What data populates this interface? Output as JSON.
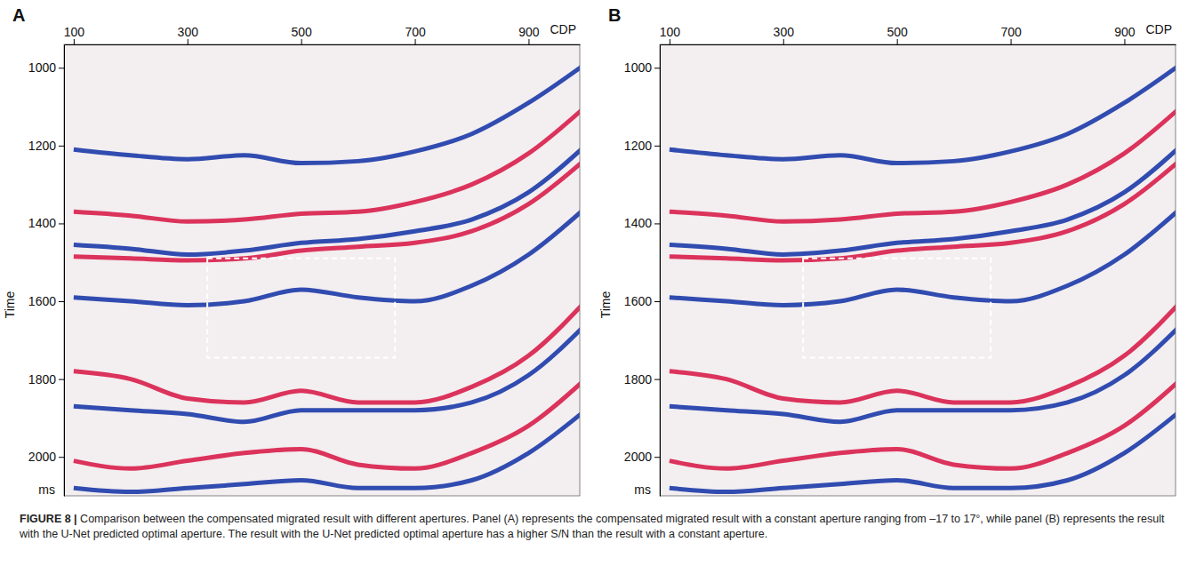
{
  "chart_data": [
    {
      "type": "line",
      "panel": "A",
      "x_label": "CDP",
      "y_label": "Time",
      "y_unit": "ms",
      "xlim": [
        83,
        990
      ],
      "ylim": [
        940,
        2100
      ],
      "xticks": [
        100,
        300,
        500,
        700,
        900
      ],
      "yticks": [
        1000,
        1200,
        1400,
        1600,
        1800,
        2000
      ],
      "x": [
        100,
        200,
        300,
        400,
        500,
        600,
        700,
        800,
        900,
        1000
      ],
      "series": [
        {
          "color": "#1c3aa9",
          "values": [
            1210,
            1225,
            1235,
            1225,
            1245,
            1240,
            1215,
            1170,
            1090,
            990
          ]
        },
        {
          "color": "#d81e4a",
          "values": [
            1370,
            1380,
            1395,
            1390,
            1375,
            1370,
            1345,
            1300,
            1220,
            1100
          ]
        },
        {
          "color": "#1c3aa9",
          "values": [
            1455,
            1465,
            1480,
            1470,
            1450,
            1440,
            1420,
            1390,
            1320,
            1200
          ]
        },
        {
          "color": "#d81e4a",
          "values": [
            1485,
            1490,
            1495,
            1490,
            1470,
            1460,
            1450,
            1420,
            1350,
            1235
          ]
        },
        {
          "color": "#1c3aa9",
          "values": [
            1590,
            1600,
            1610,
            1600,
            1570,
            1590,
            1600,
            1560,
            1480,
            1360
          ]
        },
        {
          "color": "#d81e4a",
          "values": [
            1780,
            1800,
            1850,
            1860,
            1830,
            1860,
            1860,
            1820,
            1740,
            1600
          ]
        },
        {
          "color": "#1c3aa9",
          "values": [
            1870,
            1880,
            1890,
            1910,
            1880,
            1880,
            1880,
            1860,
            1790,
            1660
          ]
        },
        {
          "color": "#d81e4a",
          "values": [
            2010,
            2030,
            2010,
            1990,
            1980,
            2020,
            2030,
            1990,
            1920,
            1800
          ]
        },
        {
          "color": "#1c3aa9",
          "values": [
            2080,
            2090,
            2080,
            2070,
            2060,
            2080,
            2080,
            2060,
            1990,
            1880
          ]
        }
      ],
      "box": {
        "x": [
          335,
          665
        ],
        "y": [
          1490,
          1745
        ]
      }
    },
    {
      "type": "line",
      "panel": "B",
      "x_label": "CDP",
      "y_label": "Time",
      "y_unit": "ms",
      "xlim": [
        83,
        990
      ],
      "ylim": [
        940,
        2100
      ],
      "xticks": [
        100,
        300,
        500,
        700,
        900
      ],
      "yticks": [
        1000,
        1200,
        1400,
        1600,
        1800,
        2000
      ],
      "x": [
        100,
        200,
        300,
        400,
        500,
        600,
        700,
        800,
        900,
        1000
      ],
      "series": [
        {
          "color": "#1c3aa9",
          "values": [
            1210,
            1225,
            1235,
            1225,
            1245,
            1240,
            1215,
            1170,
            1090,
            990
          ]
        },
        {
          "color": "#d81e4a",
          "values": [
            1370,
            1380,
            1395,
            1390,
            1375,
            1370,
            1345,
            1300,
            1220,
            1100
          ]
        },
        {
          "color": "#1c3aa9",
          "values": [
            1455,
            1465,
            1480,
            1470,
            1450,
            1440,
            1420,
            1390,
            1320,
            1200
          ]
        },
        {
          "color": "#d81e4a",
          "values": [
            1485,
            1490,
            1495,
            1490,
            1470,
            1460,
            1450,
            1420,
            1350,
            1235
          ]
        },
        {
          "color": "#1c3aa9",
          "values": [
            1590,
            1600,
            1610,
            1600,
            1570,
            1590,
            1600,
            1560,
            1480,
            1360
          ]
        },
        {
          "color": "#d81e4a",
          "values": [
            1780,
            1800,
            1850,
            1860,
            1830,
            1860,
            1860,
            1820,
            1740,
            1600
          ]
        },
        {
          "color": "#1c3aa9",
          "values": [
            1870,
            1880,
            1890,
            1910,
            1880,
            1880,
            1880,
            1860,
            1790,
            1660
          ]
        },
        {
          "color": "#d81e4a",
          "values": [
            2010,
            2030,
            2010,
            1990,
            1980,
            2020,
            2030,
            1990,
            1920,
            1800
          ]
        },
        {
          "color": "#1c3aa9",
          "values": [
            2080,
            2090,
            2080,
            2070,
            2060,
            2080,
            2080,
            2060,
            1990,
            1880
          ]
        }
      ],
      "box": {
        "x": [
          335,
          665
        ],
        "y": [
          1490,
          1745
        ]
      }
    }
  ],
  "caption": {
    "label": "FIGURE 8 |",
    "text": "Comparison between the compensated migrated result with different apertures. Panel (A) represents the compensated migrated result with a constant aperture ranging from –17 to 17°, while panel (B) represents the result with the U-Net predicted optimal aperture. The result with the U-Net predicted optimal aperture has a higher S/N than the result with a constant aperture."
  }
}
